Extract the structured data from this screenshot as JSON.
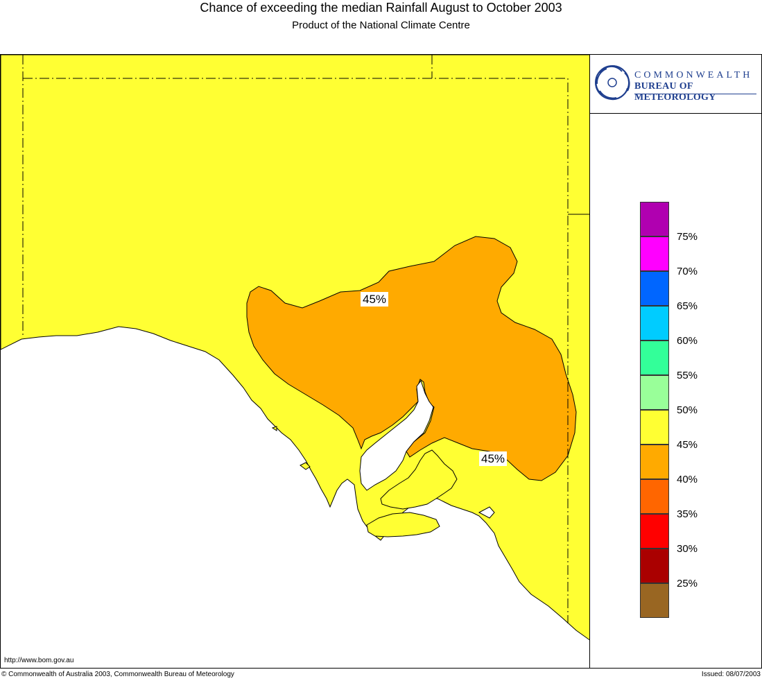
{
  "header": {
    "title": "Chance of exceeding the median Rainfall August to October 2003",
    "subtitle": "Product of the National Climate Centre"
  },
  "logo": {
    "line1": "COMMONWEALTH",
    "line2": "BUREAU OF METEOROLOGY",
    "color": "#1f3f8f"
  },
  "map": {
    "contour_labels": [
      "45%",
      "45%"
    ],
    "land_color": "#ffff33",
    "region_40_45_color": "#ffaa00",
    "sea_color": "#ffffff"
  },
  "legend": {
    "items": [
      {
        "color": "#b000b0",
        "label": ""
      },
      {
        "color": "#ff00ff",
        "label": "75%"
      },
      {
        "color": "#0066ff",
        "label": "70%"
      },
      {
        "color": "#00ccff",
        "label": "65%"
      },
      {
        "color": "#33ff99",
        "label": "60%"
      },
      {
        "color": "#99ff99",
        "label": "55%"
      },
      {
        "color": "#ffff33",
        "label": "50%"
      },
      {
        "color": "#ffaa00",
        "label": "45%"
      },
      {
        "color": "#ff6600",
        "label": "40%"
      },
      {
        "color": "#ff0000",
        "label": "35%"
      },
      {
        "color": "#aa0000",
        "label": "30%"
      },
      {
        "color": "#996622",
        "label": "25%"
      }
    ]
  },
  "footer": {
    "url": "http://www.bom.gov.au",
    "copyright": "© Commonwealth of Australia 2003, Commonwealth Bureau of Meteorology",
    "issued": "Issued: 08/07/2003"
  }
}
